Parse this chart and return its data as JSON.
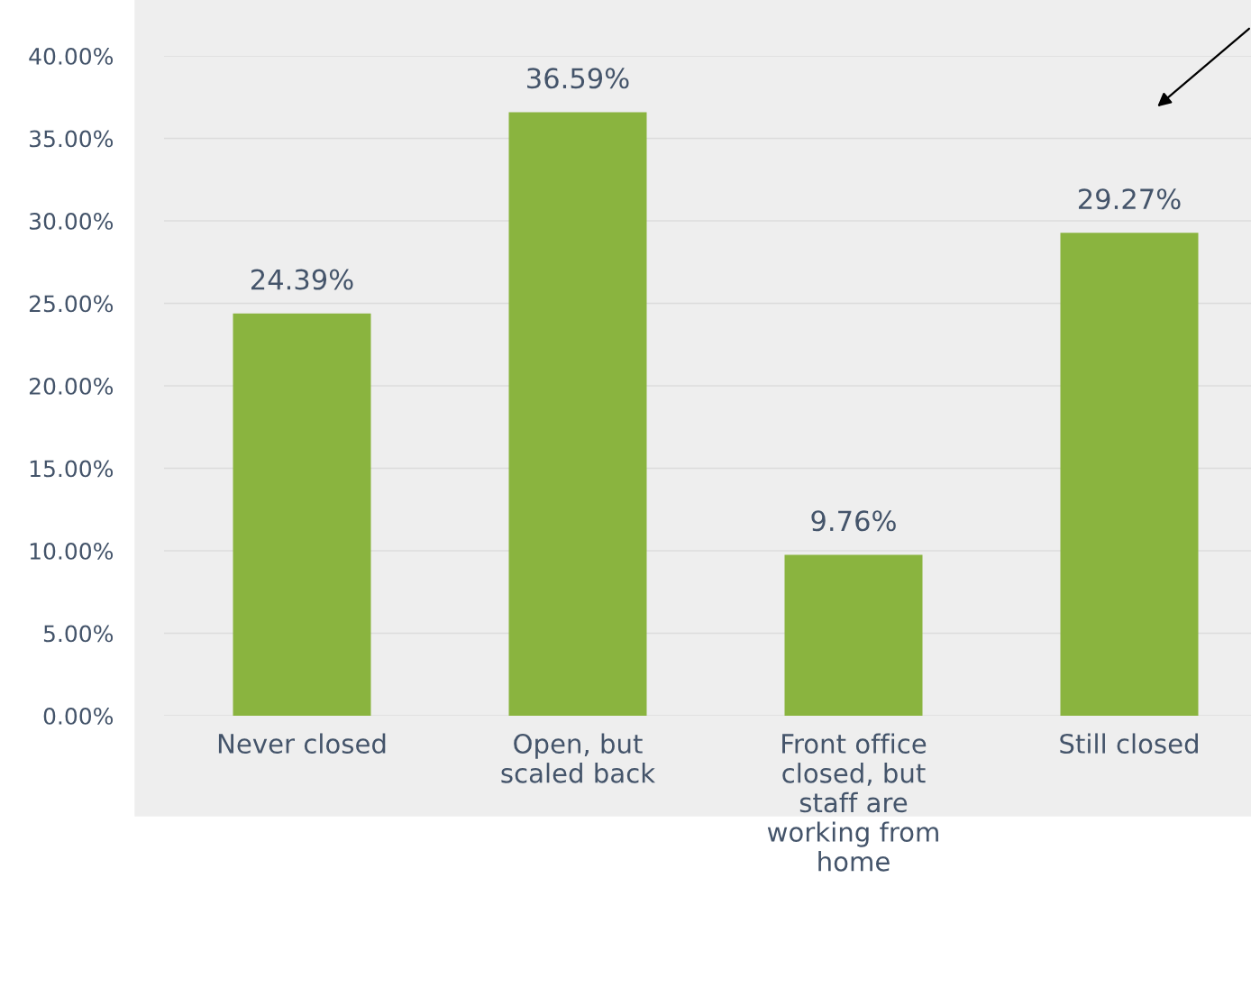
{
  "chart_data": {
    "type": "bar",
    "categories": [
      "Never closed",
      "Open, but\nscaled back",
      "Front office\nclosed, but\nstaff are\nworking from\nhome",
      "Still closed"
    ],
    "values": [
      24.39,
      36.59,
      9.76,
      29.27
    ],
    "value_labels": [
      "24.39%",
      "36.59%",
      "9.76%",
      "29.27%"
    ],
    "color": "#8ab43f",
    "ylim": [
      0,
      40
    ],
    "yticks": [
      {
        "value": 0,
        "label": "0.00%"
      },
      {
        "value": 5,
        "label": "5.00%"
      },
      {
        "value": 10,
        "label": "10.00%"
      },
      {
        "value": 15,
        "label": "15.00%"
      },
      {
        "value": 20,
        "label": "20.00%"
      },
      {
        "value": 25,
        "label": "25.00%"
      },
      {
        "value": 30,
        "label": "30.00%"
      },
      {
        "value": 35,
        "label": "35.00%"
      },
      {
        "value": 40,
        "label": "40.00%"
      }
    ],
    "grid": "y"
  }
}
